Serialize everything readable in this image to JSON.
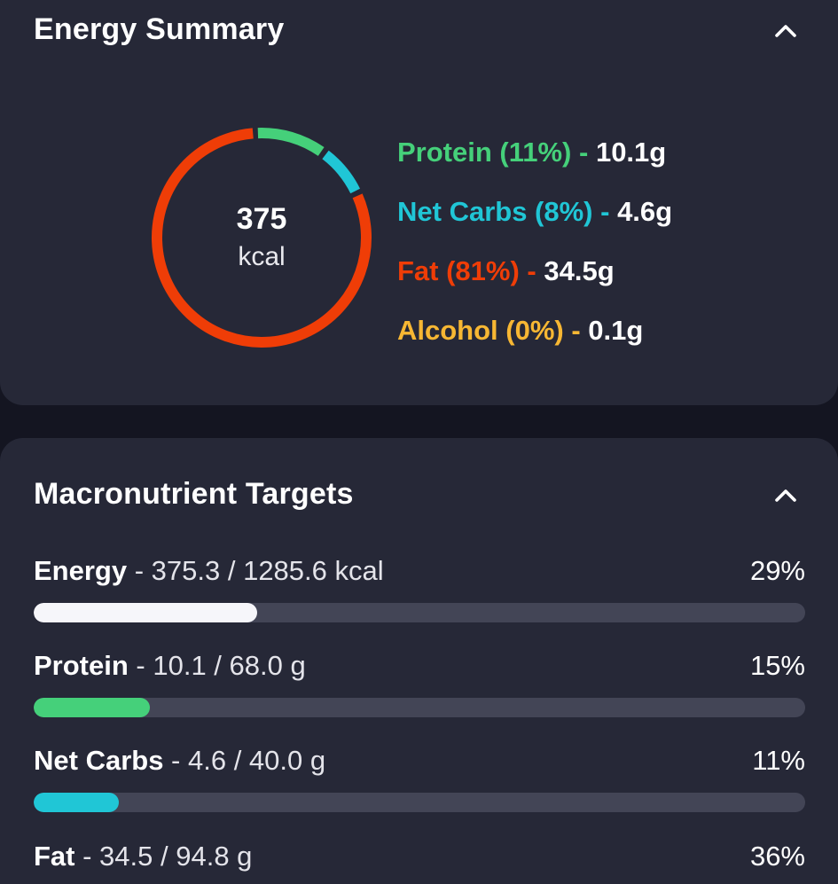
{
  "energy_summary": {
    "title": "Energy Summary",
    "collapse_icon": "chevron-up-icon",
    "total_value": "375",
    "total_unit": "kcal",
    "segments": [
      {
        "key": "protein",
        "fraction": 0.11,
        "color": "#45d07a"
      },
      {
        "key": "net_carbs",
        "fraction": 0.08,
        "color": "#20c6d6"
      },
      {
        "key": "fat",
        "fraction": 0.81,
        "color": "#ef3d07"
      }
    ],
    "legend": [
      {
        "label": "Protein (11%)",
        "sep": " - ",
        "amount": "10.1g",
        "color": "#45d07a"
      },
      {
        "label": "Net Carbs (8%)",
        "sep": " - ",
        "amount": "4.6g",
        "color": "#20c6d6"
      },
      {
        "label": "Fat (81%)",
        "sep": " - ",
        "amount": "34.5g",
        "color": "#ef3d07"
      },
      {
        "label": "Alcohol (0%)",
        "sep": " - ",
        "amount": "0.1g",
        "color": "#f7b733"
      }
    ]
  },
  "macronutrient_targets": {
    "title": "Macronutrient Targets",
    "collapse_icon": "chevron-up-icon",
    "rows": [
      {
        "name": "Energy",
        "detail": " - 375.3 / 1285.6 kcal",
        "percent_label": "29%",
        "progress": 0.29,
        "color": "#f6f6fa"
      },
      {
        "name": "Protein",
        "detail": " - 10.1 / 68.0 g",
        "percent_label": "15%",
        "progress": 0.15,
        "color": "#45d07a"
      },
      {
        "name": "Net Carbs",
        "detail": " - 4.6 / 40.0 g",
        "percent_label": "11%",
        "progress": 0.11,
        "color": "#20c6d6"
      },
      {
        "name": "Fat",
        "detail": " - 34.5 / 94.8 g",
        "percent_label": "36%",
        "progress": 0.36,
        "color": "#ef3d07"
      }
    ]
  }
}
